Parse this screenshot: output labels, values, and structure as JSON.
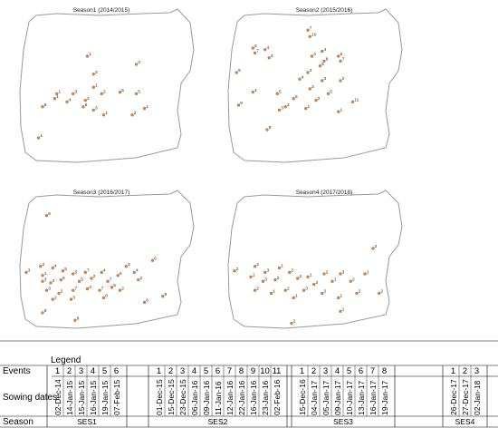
{
  "maps": [
    {
      "title": "Season1 (2014/2015)",
      "points": [
        {
          "label": "1",
          "x": 0.1,
          "y": 0.8
        },
        {
          "label": "6",
          "x": 0.12,
          "y": 0.61
        },
        {
          "label": "1",
          "x": 0.19,
          "y": 0.53
        },
        {
          "label": "1",
          "x": 0.18,
          "y": 0.56
        },
        {
          "label": "4",
          "x": 0.24,
          "y": 0.58
        },
        {
          "label": "3",
          "x": 0.27,
          "y": 0.53
        },
        {
          "label": "1",
          "x": 0.34,
          "y": 0.3
        },
        {
          "label": "3",
          "x": 0.37,
          "y": 0.41
        },
        {
          "label": "1",
          "x": 0.37,
          "y": 0.49
        },
        {
          "label": "2",
          "x": 0.41,
          "y": 0.53
        },
        {
          "label": "2",
          "x": 0.33,
          "y": 0.57
        },
        {
          "label": "6",
          "x": 0.32,
          "y": 0.61
        },
        {
          "label": "3",
          "x": 0.37,
          "y": 0.63
        },
        {
          "label": "1",
          "x": 0.42,
          "y": 0.66
        },
        {
          "label": "5",
          "x": 0.5,
          "y": 0.52
        },
        {
          "label": "4",
          "x": 0.58,
          "y": 0.35
        },
        {
          "label": "5",
          "x": 0.58,
          "y": 0.53
        },
        {
          "label": "1",
          "x": 0.62,
          "y": 0.62
        },
        {
          "label": "2",
          "x": 0.56,
          "y": 0.66
        }
      ]
    },
    {
      "title": "Season2 (2015/2016)",
      "points": [
        {
          "label": "7",
          "x": 0.4,
          "y": 0.14
        },
        {
          "label": "10",
          "x": 0.41,
          "y": 0.18
        },
        {
          "label": "5",
          "x": 0.13,
          "y": 0.25
        },
        {
          "label": "7",
          "x": 0.14,
          "y": 0.28
        },
        {
          "label": "4",
          "x": 0.19,
          "y": 0.26
        },
        {
          "label": "4",
          "x": 0.21,
          "y": 0.31
        },
        {
          "label": "9",
          "x": 0.05,
          "y": 0.4
        },
        {
          "label": "4",
          "x": 0.42,
          "y": 0.3
        },
        {
          "label": "4",
          "x": 0.47,
          "y": 0.27
        },
        {
          "label": "8",
          "x": 0.48,
          "y": 0.33
        },
        {
          "label": "5",
          "x": 0.46,
          "y": 0.36
        },
        {
          "label": "5",
          "x": 0.55,
          "y": 0.3
        },
        {
          "label": "7",
          "x": 0.56,
          "y": 0.33
        },
        {
          "label": "3",
          "x": 0.4,
          "y": 0.4
        },
        {
          "label": "3",
          "x": 0.47,
          "y": 0.45
        },
        {
          "label": "4",
          "x": 0.36,
          "y": 0.44
        },
        {
          "label": "2",
          "x": 0.56,
          "y": 0.45
        },
        {
          "label": "3",
          "x": 0.41,
          "y": 0.5
        },
        {
          "label": "5",
          "x": 0.5,
          "y": 0.53
        },
        {
          "label": "4",
          "x": 0.13,
          "y": 0.52
        },
        {
          "label": "5",
          "x": 0.25,
          "y": 0.53
        },
        {
          "label": "6",
          "x": 0.33,
          "y": 0.56
        },
        {
          "label": "2",
          "x": 0.29,
          "y": 0.61
        },
        {
          "label": "3",
          "x": 0.26,
          "y": 0.63
        },
        {
          "label": "2",
          "x": 0.44,
          "y": 0.57
        },
        {
          "label": "1",
          "x": 0.39,
          "y": 0.62
        },
        {
          "label": "8",
          "x": 0.06,
          "y": 0.6
        },
        {
          "label": "9",
          "x": 0.2,
          "y": 0.75
        },
        {
          "label": "11",
          "x": 0.62,
          "y": 0.58
        },
        {
          "label": "1",
          "x": 0.55,
          "y": 0.64
        }
      ]
    },
    {
      "title": "Season3 (2016/2017)",
      "points": [
        {
          "label": "6",
          "x": 0.14,
          "y": 0.18
        },
        {
          "label": "6",
          "x": 0.66,
          "y": 0.48
        },
        {
          "label": "3",
          "x": 0.04,
          "y": 0.56
        },
        {
          "label": "2",
          "x": 0.11,
          "y": 0.52
        },
        {
          "label": "1",
          "x": 0.12,
          "y": 0.58
        },
        {
          "label": "4",
          "x": 0.17,
          "y": 0.53
        },
        {
          "label": "5",
          "x": 0.22,
          "y": 0.55
        },
        {
          "label": "3",
          "x": 0.12,
          "y": 0.62
        },
        {
          "label": "2",
          "x": 0.16,
          "y": 0.63
        },
        {
          "label": "6",
          "x": 0.21,
          "y": 0.61
        },
        {
          "label": "5",
          "x": 0.27,
          "y": 0.57
        },
        {
          "label": "5",
          "x": 0.3,
          "y": 0.62
        },
        {
          "label": "7",
          "x": 0.33,
          "y": 0.56
        },
        {
          "label": "2",
          "x": 0.36,
          "y": 0.6
        },
        {
          "label": "4",
          "x": 0.41,
          "y": 0.56
        },
        {
          "label": "7",
          "x": 0.44,
          "y": 0.62
        },
        {
          "label": "6",
          "x": 0.49,
          "y": 0.58
        },
        {
          "label": "3",
          "x": 0.53,
          "y": 0.52
        },
        {
          "label": "4",
          "x": 0.57,
          "y": 0.56
        },
        {
          "label": "2",
          "x": 0.59,
          "y": 0.61
        },
        {
          "label": "3",
          "x": 0.14,
          "y": 0.68
        },
        {
          "label": "2",
          "x": 0.2,
          "y": 0.7
        },
        {
          "label": "7",
          "x": 0.27,
          "y": 0.68
        },
        {
          "label": "3",
          "x": 0.34,
          "y": 0.67
        },
        {
          "label": "7",
          "x": 0.4,
          "y": 0.68
        },
        {
          "label": "5",
          "x": 0.46,
          "y": 0.66
        },
        {
          "label": "8",
          "x": 0.42,
          "y": 0.73
        },
        {
          "label": "2",
          "x": 0.5,
          "y": 0.68
        },
        {
          "label": "2",
          "x": 0.17,
          "y": 0.74
        },
        {
          "label": "3",
          "x": 0.26,
          "y": 0.74
        },
        {
          "label": "6",
          "x": 0.62,
          "y": 0.76
        },
        {
          "label": "8",
          "x": 0.71,
          "y": 0.72
        },
        {
          "label": "8",
          "x": 0.12,
          "y": 0.83
        },
        {
          "label": "8",
          "x": 0.28,
          "y": 0.88
        }
      ]
    },
    {
      "title": "Season4 (2017/2018)",
      "points": [
        {
          "label": "2",
          "x": 0.72,
          "y": 0.4
        },
        {
          "label": "2",
          "x": 0.04,
          "y": 0.55
        },
        {
          "label": "2",
          "x": 0.14,
          "y": 0.52
        },
        {
          "label": "3",
          "x": 0.19,
          "y": 0.56
        },
        {
          "label": "1",
          "x": 0.26,
          "y": 0.53
        },
        {
          "label": "2",
          "x": 0.31,
          "y": 0.56
        },
        {
          "label": "1",
          "x": 0.12,
          "y": 0.59
        },
        {
          "label": "3",
          "x": 0.18,
          "y": 0.62
        },
        {
          "label": "2",
          "x": 0.24,
          "y": 0.61
        },
        {
          "label": "2",
          "x": 0.35,
          "y": 0.6
        },
        {
          "label": "1",
          "x": 0.4,
          "y": 0.59
        },
        {
          "label": "3",
          "x": 0.43,
          "y": 0.64
        },
        {
          "label": "2",
          "x": 0.48,
          "y": 0.57
        },
        {
          "label": "1",
          "x": 0.52,
          "y": 0.62
        },
        {
          "label": "3",
          "x": 0.56,
          "y": 0.57
        },
        {
          "label": "2",
          "x": 0.61,
          "y": 0.62
        },
        {
          "label": "1",
          "x": 0.68,
          "y": 0.57
        },
        {
          "label": "2",
          "x": 0.14,
          "y": 0.68
        },
        {
          "label": "1",
          "x": 0.22,
          "y": 0.7
        },
        {
          "label": "2",
          "x": 0.29,
          "y": 0.68
        },
        {
          "label": "1",
          "x": 0.33,
          "y": 0.73
        },
        {
          "label": "3",
          "x": 0.38,
          "y": 0.68
        },
        {
          "label": "2",
          "x": 0.47,
          "y": 0.7
        },
        {
          "label": "1",
          "x": 0.55,
          "y": 0.73
        },
        {
          "label": "2",
          "x": 0.64,
          "y": 0.7
        },
        {
          "label": "2",
          "x": 0.75,
          "y": 0.7
        },
        {
          "label": "1",
          "x": 0.56,
          "y": 0.82
        },
        {
          "label": "2",
          "x": 0.32,
          "y": 0.9
        }
      ]
    }
  ],
  "legend": {
    "title": "Legend",
    "row_labels": {
      "events": "Events",
      "sowing": "Sowing dates",
      "season": "Season"
    },
    "groups": [
      {
        "season": "SES1",
        "events": [
          "1",
          "2",
          "3",
          "4",
          "5",
          "6"
        ],
        "dates": [
          "02-Dec-14",
          "14-Jan-15",
          "15-Jan-15",
          "16-Jan-15",
          "19-Jan-15",
          "07-Feb-15"
        ]
      },
      {
        "season": "SES2",
        "events": [
          "1",
          "2",
          "3",
          "4",
          "5",
          "6",
          "7",
          "8",
          "9",
          "10",
          "11"
        ],
        "dates": [
          "01-Dec-15",
          "15-Dec-15",
          "23-Dec-15",
          "06-Jan-16",
          "09-Jan-16",
          "11-Jan-16",
          "12-Jan-16",
          "22-Jan-16",
          "16-Jan-16",
          "23-Jan-16",
          "02-Feb-16"
        ]
      },
      {
        "season": "SES3",
        "events": [
          "1",
          "2",
          "3",
          "4",
          "5",
          "6",
          "7",
          "8"
        ],
        "dates": [
          "15-Dec-16",
          "04-Jan-17",
          "05-Jan-17",
          "09-Jan-17",
          "10-Jan-17",
          "13-Jan-17",
          "16-Jan-17",
          "19-Jan-17"
        ]
      },
      {
        "season": "SES4",
        "events": [
          "1",
          "2",
          "3"
        ],
        "dates": [
          "26-Dec-17",
          "27-Dec-17",
          "02-Jan-18"
        ]
      }
    ]
  },
  "colors": {
    "marker": "#e8823a",
    "marker_dark": "#7a4a20",
    "outline": "#9a9a9a",
    "grid": "#000000"
  }
}
